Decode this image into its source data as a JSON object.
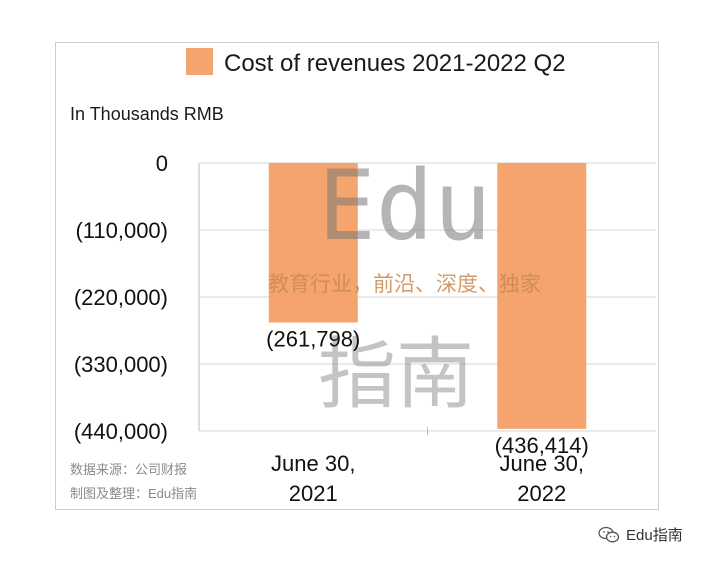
{
  "chart_data": {
    "type": "bar",
    "title": "Cost of revenues 2021-2022 Q2",
    "unit_label": "In Thousands RMB",
    "categories": [
      "June 30,\n2021",
      "June 30,\n2022"
    ],
    "series": [
      {
        "name": "Cost of revenues 2021-2022 Q2",
        "values": [
          -261798,
          -436414
        ]
      }
    ],
    "data_labels": [
      "(261,798)",
      "(436,414)"
    ],
    "ylim": [
      -440000,
      0
    ],
    "yticks": [
      0,
      -110000,
      -220000,
      -330000,
      -440000
    ],
    "ytick_labels": [
      "0",
      "(110,000)",
      "(220,000)",
      "(330,000)",
      "(440,000)"
    ],
    "grid": true,
    "legend": "top",
    "colors": {
      "bar": "#f4a46c"
    }
  },
  "source_note": [
    "数据来源：公司财报",
    "制图及整理：Edu指南"
  ],
  "watermark": {
    "letters": "Edu",
    "tagline": "教育行业，前沿、深度、独家",
    "big": "指南"
  },
  "brand": {
    "label": "Edu指南",
    "icon": "wechat-icon"
  }
}
